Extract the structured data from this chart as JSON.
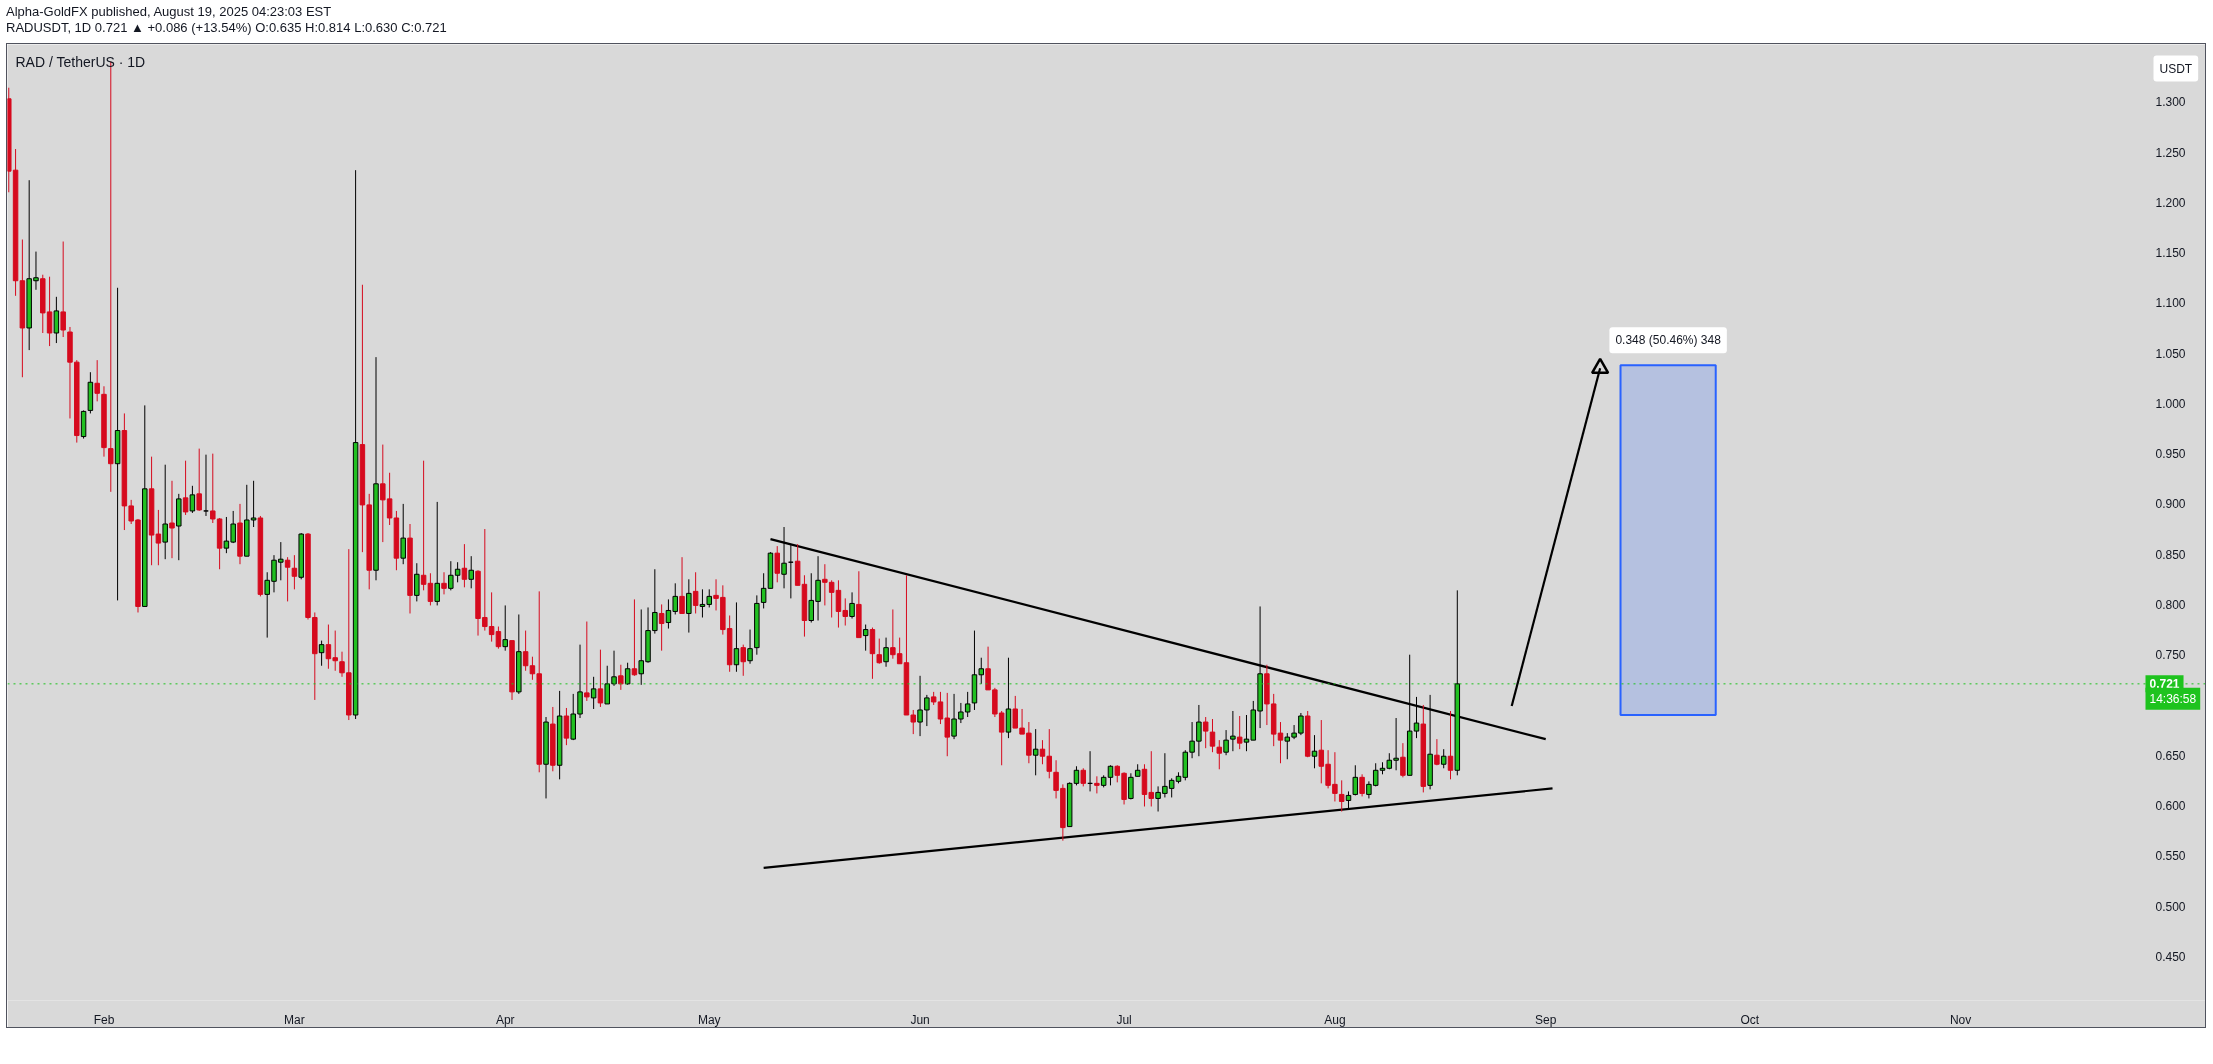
{
  "chart_data": {
    "type": "candlestick",
    "title": "RADUSDT, 1D 0.721 ▲ +0.086 (+13.54%) O:0.635 H:0.814 L:0.630 C:0.721",
    "subtitle": "RAD / TetherUS · 1D",
    "ylabel": "USDT",
    "annotations": [
      "Alpha-GoldFX published, August 19, 2025 04:23:03 EST",
      {
        "text": "14:36:58",
        "y": 0.721
      }
    ],
    "x": [
      "2025-01-18",
      "2025-01-19",
      "2025-01-20",
      "2025-01-21",
      "2025-01-22",
      "2025-01-23",
      "2025-01-24",
      "2025-01-25",
      "2025-01-26",
      "2025-01-27",
      "2025-01-28",
      "2025-01-29",
      "2025-01-30",
      "2025-01-31",
      "2025-02-01",
      "2025-02-02",
      "2025-02-03",
      "2025-02-04",
      "2025-02-05",
      "2025-02-06",
      "2025-02-07",
      "2025-02-08",
      "2025-02-09",
      "2025-02-10",
      "2025-02-11",
      "2025-02-12",
      "2025-02-13",
      "2025-02-14",
      "2025-02-15",
      "2025-02-16",
      "2025-02-17",
      "2025-02-18",
      "2025-02-19",
      "2025-02-20",
      "2025-02-21",
      "2025-02-22",
      "2025-02-23",
      "2025-02-24",
      "2025-02-25",
      "2025-02-26",
      "2025-02-27",
      "2025-02-28",
      "2025-03-01",
      "2025-03-02",
      "2025-03-03",
      "2025-03-04",
      "2025-03-05",
      "2025-03-06",
      "2025-03-07",
      "2025-03-08",
      "2025-03-09",
      "2025-03-10",
      "2025-03-11",
      "2025-03-12",
      "2025-03-13",
      "2025-03-14",
      "2025-03-15",
      "2025-03-16",
      "2025-03-17",
      "2025-03-18",
      "2025-03-19",
      "2025-03-20",
      "2025-03-21",
      "2025-03-22",
      "2025-03-23",
      "2025-03-24",
      "2025-03-25",
      "2025-03-26",
      "2025-03-27",
      "2025-03-28",
      "2025-03-29",
      "2025-03-30",
      "2025-03-31",
      "2025-04-01",
      "2025-04-02",
      "2025-04-03",
      "2025-04-04",
      "2025-04-05",
      "2025-04-06",
      "2025-04-07",
      "2025-04-08",
      "2025-04-09",
      "2025-04-10",
      "2025-04-11",
      "2025-04-12",
      "2025-04-13",
      "2025-04-14",
      "2025-04-15",
      "2025-04-16",
      "2025-04-17",
      "2025-04-18",
      "2025-04-19",
      "2025-04-20",
      "2025-04-21",
      "2025-04-22",
      "2025-04-23",
      "2025-04-24",
      "2025-04-25",
      "2025-04-26",
      "2025-04-27",
      "2025-04-28",
      "2025-04-29",
      "2025-04-30",
      "2025-05-01",
      "2025-05-02",
      "2025-05-03",
      "2025-05-04",
      "2025-05-05",
      "2025-05-06",
      "2025-05-07",
      "2025-05-08",
      "2025-05-09",
      "2025-05-10",
      "2025-05-11",
      "2025-05-12",
      "2025-05-13",
      "2025-05-14",
      "2025-05-15",
      "2025-05-16",
      "2025-05-17",
      "2025-05-18",
      "2025-05-19",
      "2025-05-20",
      "2025-05-21",
      "2025-05-22",
      "2025-05-23",
      "2025-05-24",
      "2025-05-25",
      "2025-05-26",
      "2025-05-27",
      "2025-05-28",
      "2025-05-29",
      "2025-05-30",
      "2025-05-31",
      "2025-06-01",
      "2025-06-02",
      "2025-06-03",
      "2025-06-04",
      "2025-06-05",
      "2025-06-06",
      "2025-06-07",
      "2025-06-08",
      "2025-06-09",
      "2025-06-10",
      "2025-06-11",
      "2025-06-12",
      "2025-06-13",
      "2025-06-14",
      "2025-06-15",
      "2025-06-16",
      "2025-06-17",
      "2025-06-18",
      "2025-06-19",
      "2025-06-20",
      "2025-06-21",
      "2025-06-22",
      "2025-06-23",
      "2025-06-24",
      "2025-06-25",
      "2025-06-26",
      "2025-06-27",
      "2025-06-28",
      "2025-06-29",
      "2025-06-30",
      "2025-07-01",
      "2025-07-02",
      "2025-07-03",
      "2025-07-04",
      "2025-07-05",
      "2025-07-06",
      "2025-07-07",
      "2025-07-08",
      "2025-07-09",
      "2025-07-10",
      "2025-07-11",
      "2025-07-12",
      "2025-07-13",
      "2025-07-14",
      "2025-07-15",
      "2025-07-16",
      "2025-07-17",
      "2025-07-18",
      "2025-07-19",
      "2025-07-20",
      "2025-07-21",
      "2025-07-22",
      "2025-07-23",
      "2025-07-24",
      "2025-07-25",
      "2025-07-26",
      "2025-07-27",
      "2025-07-28",
      "2025-07-29",
      "2025-07-30",
      "2025-07-31",
      "2025-08-01",
      "2025-08-02",
      "2025-08-03",
      "2025-08-04",
      "2025-08-05",
      "2025-08-06",
      "2025-08-07",
      "2025-08-08",
      "2025-08-09",
      "2025-08-10",
      "2025-08-11",
      "2025-08-12",
      "2025-08-13",
      "2025-08-14",
      "2025-08-15",
      "2025-08-16",
      "2025-08-17",
      "2025-08-18",
      "2025-08-19"
    ],
    "ohlc": [
      [
        1.303,
        1.314,
        1.21,
        1.231
      ],
      [
        1.232,
        1.253,
        1.107,
        1.122
      ],
      [
        1.122,
        1.163,
        1.026,
        1.075
      ],
      [
        1.075,
        1.222,
        1.053,
        1.124
      ],
      [
        1.122,
        1.151,
        1.113,
        1.125
      ],
      [
        1.124,
        1.128,
        1.07,
        1.09
      ],
      [
        1.091,
        1.126,
        1.057,
        1.07
      ],
      [
        1.07,
        1.106,
        1.06,
        1.092
      ],
      [
        1.091,
        1.161,
        1.066,
        1.073
      ],
      [
        1.071,
        1.076,
        0.985,
        1.041
      ],
      [
        1.041,
        1.043,
        0.961,
        0.968
      ],
      [
        0.967,
        0.993,
        0.965,
        0.992
      ],
      [
        0.993,
        1.031,
        0.99,
        1.021
      ],
      [
        1.02,
        1.043,
        1.002,
        1.01
      ],
      [
        1.009,
        1.017,
        0.947,
        0.956
      ],
      [
        0.955,
        1.34,
        0.912,
        0.94
      ],
      [
        0.94,
        1.115,
        0.804,
        0.973
      ],
      [
        0.973,
        0.99,
        0.874,
        0.898
      ],
      [
        0.898,
        0.904,
        0.88,
        0.883
      ],
      [
        0.884,
        0.885,
        0.792,
        0.798
      ],
      [
        0.798,
        0.998,
        0.798,
        0.915
      ],
      [
        0.915,
        0.947,
        0.839,
        0.869
      ],
      [
        0.87,
        0.894,
        0.839,
        0.861
      ],
      [
        0.862,
        0.939,
        0.845,
        0.88
      ],
      [
        0.881,
        0.923,
        0.846,
        0.876
      ],
      [
        0.878,
        0.91,
        0.844,
        0.905
      ],
      [
        0.906,
        0.943,
        0.889,
        0.892
      ],
      [
        0.893,
        0.918,
        0.891,
        0.909
      ],
      [
        0.91,
        0.955,
        0.893,
        0.894
      ],
      [
        0.893,
        0.949,
        0.888,
        0.893
      ],
      [
        0.893,
        0.95,
        0.881,
        0.885
      ],
      [
        0.885,
        0.886,
        0.835,
        0.856
      ],
      [
        0.856,
        0.887,
        0.851,
        0.863
      ],
      [
        0.862,
        0.893,
        0.861,
        0.88
      ],
      [
        0.881,
        0.9,
        0.84,
        0.848
      ],
      [
        0.848,
        0.919,
        0.848,
        0.884
      ],
      [
        0.884,
        0.923,
        0.877,
        0.886
      ],
      [
        0.886,
        0.888,
        0.808,
        0.81
      ],
      [
        0.81,
        0.832,
        0.767,
        0.824
      ],
      [
        0.823,
        0.849,
        0.812,
        0.844
      ],
      [
        0.842,
        0.862,
        0.824,
        0.845
      ],
      [
        0.844,
        0.847,
        0.803,
        0.837
      ],
      [
        0.836,
        0.849,
        0.815,
        0.828
      ],
      [
        0.827,
        0.871,
        0.825,
        0.87
      ],
      [
        0.87,
        0.871,
        0.785,
        0.787
      ],
      [
        0.787,
        0.792,
        0.705,
        0.751
      ],
      [
        0.752,
        0.764,
        0.739,
        0.76
      ],
      [
        0.76,
        0.78,
        0.736,
        0.746
      ],
      [
        0.747,
        0.774,
        0.734,
        0.744
      ],
      [
        0.743,
        0.753,
        0.728,
        0.732
      ],
      [
        0.732,
        0.855,
        0.685,
        0.69
      ],
      [
        0.69,
        1.232,
        0.686,
        0.961
      ],
      [
        0.959,
        1.118,
        0.852,
        0.899
      ],
      [
        0.899,
        0.91,
        0.815,
        0.834
      ],
      [
        0.834,
        1.046,
        0.824,
        0.92
      ],
      [
        0.92,
        0.959,
        0.862,
        0.904
      ],
      [
        0.905,
        0.931,
        0.879,
        0.886
      ],
      [
        0.886,
        0.893,
        0.834,
        0.846
      ],
      [
        0.846,
        0.9,
        0.84,
        0.866
      ],
      [
        0.866,
        0.88,
        0.791,
        0.809
      ],
      [
        0.809,
        0.841,
        0.803,
        0.83
      ],
      [
        0.829,
        0.943,
        0.814,
        0.82
      ],
      [
        0.821,
        0.831,
        0.799,
        0.803
      ],
      [
        0.803,
        0.902,
        0.799,
        0.821
      ],
      [
        0.821,
        0.832,
        0.81,
        0.816
      ],
      [
        0.816,
        0.843,
        0.814,
        0.829
      ],
      [
        0.829,
        0.842,
        0.822,
        0.835
      ],
      [
        0.836,
        0.86,
        0.817,
        0.825
      ],
      [
        0.825,
        0.848,
        0.816,
        0.834
      ],
      [
        0.833,
        0.834,
        0.769,
        0.786
      ],
      [
        0.787,
        0.875,
        0.774,
        0.778
      ],
      [
        0.778,
        0.812,
        0.763,
        0.77
      ],
      [
        0.773,
        0.778,
        0.756,
        0.758
      ],
      [
        0.758,
        0.799,
        0.754,
        0.765
      ],
      [
        0.764,
        0.764,
        0.705,
        0.713
      ],
      [
        0.713,
        0.79,
        0.711,
        0.753
      ],
      [
        0.753,
        0.774,
        0.734,
        0.739
      ],
      [
        0.739,
        0.748,
        0.725,
        0.731
      ],
      [
        0.731,
        0.813,
        0.633,
        0.641
      ],
      [
        0.641,
        0.688,
        0.607,
        0.683
      ],
      [
        0.681,
        0.698,
        0.634,
        0.64
      ],
      [
        0.64,
        0.714,
        0.626,
        0.689
      ],
      [
        0.689,
        0.697,
        0.66,
        0.667
      ],
      [
        0.666,
        0.711,
        0.665,
        0.691
      ],
      [
        0.691,
        0.76,
        0.687,
        0.713
      ],
      [
        0.712,
        0.783,
        0.704,
        0.708
      ],
      [
        0.707,
        0.728,
        0.696,
        0.716
      ],
      [
        0.716,
        0.755,
        0.698,
        0.702
      ],
      [
        0.701,
        0.739,
        0.701,
        0.721
      ],
      [
        0.721,
        0.754,
        0.719,
        0.728
      ],
      [
        0.729,
        0.74,
        0.715,
        0.721
      ],
      [
        0.721,
        0.742,
        0.72,
        0.736
      ],
      [
        0.736,
        0.805,
        0.729,
        0.73
      ],
      [
        0.731,
        0.795,
        0.72,
        0.744
      ],
      [
        0.743,
        0.797,
        0.742,
        0.774
      ],
      [
        0.774,
        0.835,
        0.771,
        0.792
      ],
      [
        0.791,
        0.8,
        0.754,
        0.781
      ],
      [
        0.782,
        0.805,
        0.776,
        0.794
      ],
      [
        0.793,
        0.821,
        0.79,
        0.808
      ],
      [
        0.808,
        0.847,
        0.791,
        0.791
      ],
      [
        0.791,
        0.825,
        0.772,
        0.811
      ],
      [
        0.813,
        0.832,
        0.791,
        0.799
      ],
      [
        0.798,
        0.815,
        0.787,
        0.8
      ],
      [
        0.8,
        0.815,
        0.797,
        0.808
      ],
      [
        0.809,
        0.825,
        0.794,
        0.806
      ],
      [
        0.807,
        0.819,
        0.77,
        0.775
      ],
      [
        0.776,
        0.789,
        0.733,
        0.74
      ],
      [
        0.74,
        0.802,
        0.733,
        0.756
      ],
      [
        0.757,
        0.76,
        0.729,
        0.743
      ],
      [
        0.744,
        0.775,
        0.741,
        0.756
      ],
      [
        0.757,
        0.809,
        0.75,
        0.801
      ],
      [
        0.802,
        0.831,
        0.796,
        0.816
      ],
      [
        0.816,
        0.852,
        0.816,
        0.851
      ],
      [
        0.851,
        0.858,
        0.822,
        0.831
      ],
      [
        0.83,
        0.877,
        0.816,
        0.841
      ],
      [
        0.842,
        0.859,
        0.806,
        0.842
      ],
      [
        0.843,
        0.86,
        0.819,
        0.819
      ],
      [
        0.82,
        0.829,
        0.768,
        0.784
      ],
      [
        0.784,
        0.831,
        0.782,
        0.804
      ],
      [
        0.803,
        0.848,
        0.784,
        0.824
      ],
      [
        0.825,
        0.84,
        0.799,
        0.822
      ],
      [
        0.822,
        0.824,
        0.787,
        0.812
      ],
      [
        0.814,
        0.824,
        0.777,
        0.793
      ],
      [
        0.794,
        0.806,
        0.779,
        0.788
      ],
      [
        0.788,
        0.812,
        0.786,
        0.801
      ],
      [
        0.8,
        0.833,
        0.767,
        0.767
      ],
      [
        0.769,
        0.78,
        0.754,
        0.775
      ],
      [
        0.775,
        0.777,
        0.726,
        0.751
      ],
      [
        0.75,
        0.766,
        0.741,
        0.742
      ],
      [
        0.743,
        0.767,
        0.738,
        0.757
      ],
      [
        0.757,
        0.795,
        0.746,
        0.75
      ],
      [
        0.751,
        0.767,
        0.741,
        0.741
      ],
      [
        0.742,
        0.829,
        0.69,
        0.69
      ],
      [
        0.69,
        0.695,
        0.671,
        0.683
      ],
      [
        0.683,
        0.729,
        0.669,
        0.695
      ],
      [
        0.695,
        0.71,
        0.679,
        0.707
      ],
      [
        0.708,
        0.713,
        0.7,
        0.703
      ],
      [
        0.703,
        0.713,
        0.681,
        0.686
      ],
      [
        0.687,
        0.712,
        0.649,
        0.668
      ],
      [
        0.669,
        0.711,
        0.666,
        0.686
      ],
      [
        0.686,
        0.702,
        0.682,
        0.693
      ],
      [
        0.693,
        0.713,
        0.688,
        0.701
      ],
      [
        0.702,
        0.774,
        0.695,
        0.73
      ],
      [
        0.73,
        0.747,
        0.721,
        0.736
      ],
      [
        0.736,
        0.758,
        0.715,
        0.715
      ],
      [
        0.715,
        0.717,
        0.688,
        0.691
      ],
      [
        0.692,
        0.694,
        0.64,
        0.673
      ],
      [
        0.673,
        0.747,
        0.667,
        0.696
      ],
      [
        0.696,
        0.709,
        0.677,
        0.677
      ],
      [
        0.677,
        0.696,
        0.671,
        0.671
      ],
      [
        0.672,
        0.683,
        0.642,
        0.65
      ],
      [
        0.65,
        0.676,
        0.63,
        0.656
      ],
      [
        0.656,
        0.665,
        0.641,
        0.649
      ],
      [
        0.649,
        0.676,
        0.627,
        0.634
      ],
      [
        0.633,
        0.645,
        0.607,
        0.615
      ],
      [
        0.617,
        0.621,
        0.565,
        0.578
      ],
      [
        0.579,
        0.623,
        0.579,
        0.622
      ],
      [
        0.622,
        0.639,
        0.62,
        0.635
      ],
      [
        0.635,
        0.637,
        0.619,
        0.622
      ],
      [
        0.622,
        0.654,
        0.614,
        0.622
      ],
      [
        0.622,
        0.629,
        0.612,
        0.62
      ],
      [
        0.62,
        0.63,
        0.618,
        0.628
      ],
      [
        0.628,
        0.64,
        0.62,
        0.639
      ],
      [
        0.639,
        0.64,
        0.623,
        0.63
      ],
      [
        0.632,
        0.633,
        0.601,
        0.606
      ],
      [
        0.607,
        0.632,
        0.606,
        0.628
      ],
      [
        0.629,
        0.641,
        0.629,
        0.635
      ],
      [
        0.636,
        0.641,
        0.599,
        0.611
      ],
      [
        0.613,
        0.654,
        0.599,
        0.607
      ],
      [
        0.607,
        0.619,
        0.594,
        0.613
      ],
      [
        0.612,
        0.652,
        0.608,
        0.619
      ],
      [
        0.617,
        0.627,
        0.608,
        0.625
      ],
      [
        0.624,
        0.633,
        0.622,
        0.629
      ],
      [
        0.628,
        0.655,
        0.625,
        0.653
      ],
      [
        0.653,
        0.683,
        0.647,
        0.664
      ],
      [
        0.664,
        0.7,
        0.649,
        0.683
      ],
      [
        0.683,
        0.688,
        0.657,
        0.674
      ],
      [
        0.673,
        0.686,
        0.653,
        0.659
      ],
      [
        0.658,
        0.665,
        0.636,
        0.652
      ],
      [
        0.653,
        0.675,
        0.65,
        0.665
      ],
      [
        0.666,
        0.694,
        0.654,
        0.669
      ],
      [
        0.668,
        0.689,
        0.656,
        0.662
      ],
      [
        0.663,
        0.69,
        0.654,
        0.666
      ],
      [
        0.665,
        0.704,
        0.665,
        0.695
      ],
      [
        0.694,
        0.798,
        0.677,
        0.731
      ],
      [
        0.731,
        0.74,
        0.68,
        0.701
      ],
      [
        0.701,
        0.711,
        0.659,
        0.671
      ],
      [
        0.672,
        0.683,
        0.642,
        0.665
      ],
      [
        0.664,
        0.672,
        0.646,
        0.668
      ],
      [
        0.668,
        0.68,
        0.666,
        0.672
      ],
      [
        0.672,
        0.692,
        0.67,
        0.689
      ],
      [
        0.689,
        0.694,
        0.648,
        0.649
      ],
      [
        0.649,
        0.67,
        0.637,
        0.654
      ],
      [
        0.655,
        0.685,
        0.622,
        0.639
      ],
      [
        0.641,
        0.655,
        0.617,
        0.62
      ],
      [
        0.621,
        0.653,
        0.604,
        0.612
      ],
      [
        0.611,
        0.625,
        0.594,
        0.604
      ],
      [
        0.605,
        0.614,
        0.597,
        0.61
      ],
      [
        0.611,
        0.64,
        0.61,
        0.628
      ],
      [
        0.628,
        0.631,
        0.609,
        0.612
      ],
      [
        0.611,
        0.624,
        0.607,
        0.621
      ],
      [
        0.62,
        0.642,
        0.619,
        0.635
      ],
      [
        0.635,
        0.643,
        0.631,
        0.637
      ],
      [
        0.637,
        0.652,
        0.636,
        0.645
      ],
      [
        0.645,
        0.687,
        0.635,
        0.647
      ],
      [
        0.648,
        0.662,
        0.628,
        0.63
      ],
      [
        0.63,
        0.75,
        0.63,
        0.674
      ],
      [
        0.674,
        0.708,
        0.667,
        0.682
      ],
      [
        0.681,
        0.7,
        0.613,
        0.619
      ],
      [
        0.62,
        0.71,
        0.616,
        0.651
      ],
      [
        0.65,
        0.666,
        0.64,
        0.641
      ],
      [
        0.641,
        0.656,
        0.637,
        0.649
      ],
      [
        0.649,
        0.694,
        0.626,
        0.635
      ],
      [
        0.635,
        0.814,
        0.63,
        0.721
      ]
    ],
    "colors": [
      "#d60a1e",
      "#d60a1e",
      "#d60a1e",
      "#21c021",
      "#21c021",
      "#d60a1e",
      "#d60a1e",
      "#21c021",
      "#d60a1e",
      "#d60a1e",
      "#d60a1e",
      "#21c021",
      "#21c021",
      "#d60a1e",
      "#d60a1e",
      "#d60a1e",
      "#21c021",
      "#d60a1e",
      "#d60a1e",
      "#d60a1e",
      "#21c021",
      "#d60a1e",
      "#d60a1e",
      "#21c021",
      "#d60a1e",
      "#21c021",
      "#d60a1e",
      "#21c021",
      "#d60a1e",
      "#000000",
      "#d60a1e",
      "#d60a1e",
      "#21c021",
      "#21c021",
      "#d60a1e",
      "#21c021",
      "#21c021",
      "#d60a1e",
      "#21c021",
      "#21c021",
      "#21c021",
      "#d60a1e",
      "#d60a1e",
      "#21c021",
      "#d60a1e",
      "#d60a1e",
      "#21c021",
      "#d60a1e",
      "#d60a1e",
      "#d60a1e",
      "#d60a1e",
      "#21c021",
      "#d60a1e",
      "#d60a1e",
      "#21c021",
      "#d60a1e",
      "#d60a1e",
      "#d60a1e",
      "#21c021",
      "#d60a1e",
      "#21c021",
      "#d60a1e",
      "#d60a1e",
      "#21c021",
      "#d60a1e",
      "#21c021",
      "#21c021",
      "#d60a1e",
      "#21c021",
      "#d60a1e",
      "#d60a1e",
      "#d60a1e",
      "#d60a1e",
      "#21c021",
      "#d60a1e",
      "#21c021",
      "#d60a1e",
      "#d60a1e",
      "#d60a1e",
      "#21c021",
      "#d60a1e",
      "#21c021",
      "#d60a1e",
      "#21c021",
      "#21c021",
      "#d60a1e",
      "#21c021",
      "#d60a1e",
      "#21c021",
      "#21c021",
      "#d60a1e",
      "#21c021",
      "#d60a1e",
      "#21c021",
      "#21c021",
      "#21c021",
      "#d60a1e",
      "#21c021",
      "#21c021",
      "#d60a1e",
      "#21c021",
      "#d60a1e",
      "#21c021",
      "#21c021",
      "#d60a1e",
      "#d60a1e",
      "#d60a1e",
      "#21c021",
      "#d60a1e",
      "#21c021",
      "#21c021",
      "#21c021",
      "#21c021",
      "#d60a1e",
      "#21c021",
      "#000000",
      "#d60a1e",
      "#d60a1e",
      "#21c021",
      "#21c021",
      "#d60a1e",
      "#d60a1e",
      "#d60a1e",
      "#d60a1e",
      "#21c021",
      "#d60a1e",
      "#21c021",
      "#d60a1e",
      "#d60a1e",
      "#21c021",
      "#d60a1e",
      "#d60a1e",
      "#d60a1e",
      "#d60a1e",
      "#21c021",
      "#21c021",
      "#d60a1e",
      "#d60a1e",
      "#d60a1e",
      "#21c021",
      "#21c021",
      "#21c021",
      "#21c021",
      "#21c021",
      "#d60a1e",
      "#d60a1e",
      "#d60a1e",
      "#21c021",
      "#d60a1e",
      "#d60a1e",
      "#d60a1e",
      "#21c021",
      "#d60a1e",
      "#d60a1e",
      "#d60a1e",
      "#d60a1e",
      "#21c021",
      "#21c021",
      "#d60a1e",
      "#000000",
      "#d60a1e",
      "#21c021",
      "#21c021",
      "#d60a1e",
      "#d60a1e",
      "#21c021",
      "#21c021",
      "#d60a1e",
      "#d60a1e",
      "#21c021",
      "#21c021",
      "#21c021",
      "#21c021",
      "#21c021",
      "#21c021",
      "#21c021",
      "#d60a1e",
      "#d60a1e",
      "#d60a1e",
      "#21c021",
      "#21c021",
      "#d60a1e",
      "#21c021",
      "#21c021",
      "#21c021",
      "#d60a1e",
      "#d60a1e",
      "#d60a1e",
      "#21c021",
      "#21c021",
      "#21c021",
      "#d60a1e",
      "#21c021",
      "#d60a1e",
      "#d60a1e",
      "#d60a1e",
      "#d60a1e",
      "#21c021",
      "#21c021",
      "#d60a1e",
      "#21c021",
      "#21c021",
      "#21c021",
      "#21c021",
      "#21c021",
      "#d60a1e",
      "#21c021",
      "#21c021",
      "#d60a1e",
      "#21c021",
      "#d60a1e",
      "#21c021",
      "#d60a1e",
      "#21c021"
    ],
    "series": [
      {
        "type": "line",
        "x": [
          "2025-05-10",
          "2025-09-01"
        ],
        "values": [
          0.865,
          0.666
        ],
        "color": "#000000"
      },
      {
        "type": "line",
        "x": [
          "2025-05-09",
          "2025-09-02"
        ],
        "values": [
          0.538,
          0.617
        ],
        "color": "#000000"
      },
      {
        "type": "line",
        "x": [
          "2025-08-27",
          "2025-09-09"
        ],
        "values": [
          0.699,
          1.035
        ],
        "color": "#000000"
      },
      {
        "type": "scatter",
        "x": [
          "2025-09-09"
        ],
        "values": [
          1.035
        ],
        "color": "#000000",
        "marker": "triangle"
      },
      {
        "type": "bar",
        "x": [
          "2025-09-19"
        ],
        "values": [
          0.348
        ],
        "base": [
          0.69
        ],
        "color": "#2962ff",
        "value_labels": [
          "0.348 (50.46%) 348"
        ]
      }
    ],
    "ref_lines": [
      {
        "axis": "y",
        "value": 0.721,
        "label": "0.721",
        "color": "#1ec31e",
        "line_style": "dotted"
      }
    ],
    "xlim": [
      "2025-01-17T19:30",
      "2025-12-07T07:30"
    ],
    "xticks": [
      {
        "value": "2025-02-01",
        "label": "Feb"
      },
      {
        "value": "2025-03-01",
        "label": "Mar"
      },
      {
        "value": "2025-04-01",
        "label": "Apr"
      },
      {
        "value": "2025-05-01",
        "label": "May"
      },
      {
        "value": "2025-06-01",
        "label": "Jun"
      },
      {
        "value": "2025-07-01",
        "label": "Jul"
      },
      {
        "value": "2025-08-01",
        "label": "Aug"
      },
      {
        "value": "2025-09-01",
        "label": "Sep"
      },
      {
        "value": "2025-10-01",
        "label": "Oct"
      },
      {
        "value": "2025-11-01",
        "label": "Nov"
      }
    ],
    "ylim": [
      0.406,
      1.357
    ],
    "yticks": [
      {
        "value": 0.45,
        "label": "0.450"
      },
      {
        "value": 0.5,
        "label": "0.500"
      },
      {
        "value": 0.55,
        "label": "0.550"
      },
      {
        "value": 0.6,
        "label": "0.600"
      },
      {
        "value": 0.65,
        "label": "0.650"
      },
      {
        "value": 0.75,
        "label": "0.750"
      },
      {
        "value": 0.8,
        "label": "0.800"
      },
      {
        "value": 0.85,
        "label": "0.850"
      },
      {
        "value": 0.9,
        "label": "0.900"
      },
      {
        "value": 0.95,
        "label": "0.950"
      },
      {
        "value": 1.0,
        "label": "1.000"
      },
      {
        "value": 1.05,
        "label": "1.050"
      },
      {
        "value": 1.1,
        "label": "1.100"
      },
      {
        "value": 1.15,
        "label": "1.150"
      },
      {
        "value": 1.2,
        "label": "1.200"
      },
      {
        "value": 1.25,
        "label": "1.250"
      },
      {
        "value": 1.3,
        "label": "1.300"
      }
    ],
    "grid": false
  }
}
